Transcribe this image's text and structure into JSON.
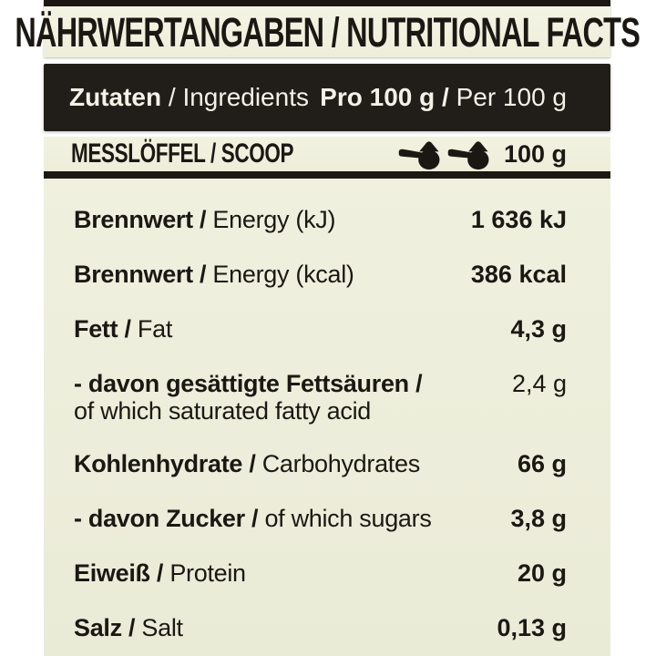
{
  "colors": {
    "cream": "#edeeda",
    "ink_black": "#1b1814",
    "bar_background": "#211e1a",
    "bar_text": "#f3f2e7",
    "page_background": "#ffffff"
  },
  "title": "NÄHRWERTANGABEN / NUTRITIONAL FACTS",
  "ingredients_bar": {
    "left_bold": "Zutaten",
    "left_regular": " / Ingredients",
    "right_bold": "Pro 100 g /",
    "right_regular": " Per 100 g"
  },
  "scoop_row": {
    "label": "MESSLÖFFEL / SCOOP",
    "icon": "scoop-icon",
    "icon_count": 2,
    "value": "100 g"
  },
  "nutrition_rows": [
    {
      "label_bold": "Brennwert /",
      "label_regular": " Energy (kJ)",
      "label_line2": "",
      "value": "1 636 kJ",
      "value_bold": true
    },
    {
      "label_bold": "Brennwert /",
      "label_regular": " Energy (kcal)",
      "label_line2": "",
      "value": "386 kcal",
      "value_bold": true
    },
    {
      "label_bold": "Fett /",
      "label_regular": " Fat",
      "label_line2": "",
      "value": "4,3 g",
      "value_bold": true
    },
    {
      "label_bold": "- davon gesättigte Fettsäuren /",
      "label_regular": "",
      "label_line2": "of which saturated fatty acid",
      "value": "2,4 g",
      "value_bold": false
    },
    {
      "label_bold": "Kohlenhydrate /",
      "label_regular": " Carbohydrates",
      "label_line2": "",
      "value": "66 g",
      "value_bold": true
    },
    {
      "label_bold": "- davon Zucker /",
      "label_regular": " of which sugars",
      "label_line2": "",
      "value": "3,8 g",
      "value_bold": true
    },
    {
      "label_bold": "Eiweiß /",
      "label_regular": " Protein",
      "label_line2": "",
      "value": "20 g",
      "value_bold": true
    },
    {
      "label_bold": "Salz /",
      "label_regular": " Salt",
      "label_line2": "",
      "value": "0,13 g",
      "value_bold": true
    }
  ]
}
